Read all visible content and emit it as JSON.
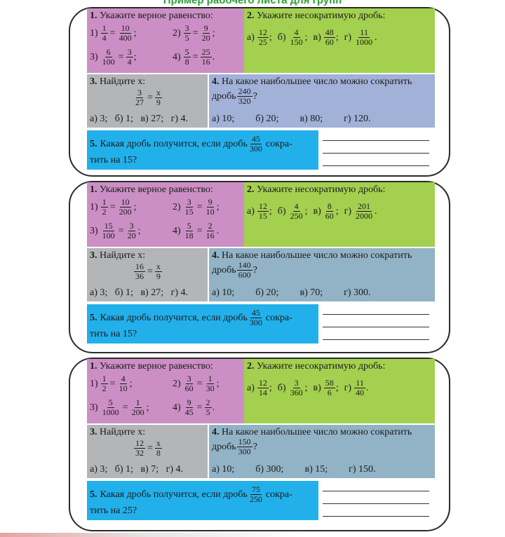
{
  "header_text": "Пример рабочего листа для групп",
  "cards": [
    {
      "q1": {
        "title_num": "1.",
        "title": "Укажите верное равенство:",
        "items": [
          {
            "label": "1)",
            "a": [
              "1",
              "4"
            ],
            "b": [
              "10",
              "400"
            ],
            "tail": ";"
          },
          {
            "label": "2)",
            "a": [
              "3",
              "5"
            ],
            "b": [
              "9",
              "20"
            ],
            "tail": ";"
          },
          {
            "label": "3)",
            "a": [
              "6",
              "100"
            ],
            "b": [
              "3",
              "4"
            ],
            "tail": ";"
          },
          {
            "label": "4)",
            "a": [
              "5",
              "8"
            ],
            "b": [
              "25",
              "16"
            ],
            "tail": "."
          }
        ]
      },
      "q2": {
        "title_num": "2.",
        "title": "Укажите несократимую дробь:",
        "items": [
          {
            "label": "а)",
            "f": [
              "12",
              "25"
            ],
            "tail": ";"
          },
          {
            "label": "б)",
            "f": [
              "4",
              "150"
            ],
            "tail": ";"
          },
          {
            "label": "в)",
            "f": [
              "48",
              "60"
            ],
            "tail": ";"
          },
          {
            "label": "г)",
            "f": [
              "11",
              "1000"
            ],
            "tail": "."
          }
        ]
      },
      "q3": {
        "title_num": "3.",
        "title": "Найдите x:",
        "a": [
          "3",
          "27"
        ],
        "b": [
          "x",
          "9"
        ],
        "answers": "а) 3;   б) 1;   в) 27;   г) 4."
      },
      "q4": {
        "title_num": "4.",
        "title": "На какое наибольшее число можно сократить",
        "prefix": "дробь",
        "f": [
          "240",
          "320"
        ],
        "suffix": "?",
        "answers": [
          "а) 10;",
          "б) 20;",
          "в) 80;",
          "г) 120."
        ]
      },
      "q5": {
        "title_num": "5.",
        "text1": "Какая дробь получится, если дробь",
        "f": [
          "45",
          "300"
        ],
        "text2": "сокра-",
        "text3": "тить на 15?"
      }
    },
    {
      "q1": {
        "title_num": "1.",
        "title": "Укажите верное равенство:",
        "items": [
          {
            "label": "1)",
            "a": [
              "1",
              "2"
            ],
            "b": [
              "10",
              "200"
            ],
            "tail": ";"
          },
          {
            "label": "2)",
            "a": [
              "3",
              "15"
            ],
            "b": [
              "9",
              "10"
            ],
            "tail": ";"
          },
          {
            "label": "3)",
            "a": [
              "15",
              "100"
            ],
            "b": [
              "3",
              "20"
            ],
            "tail": ";"
          },
          {
            "label": "4)",
            "a": [
              "5",
              "18"
            ],
            "b": [
              "2",
              "16"
            ],
            "tail": "."
          }
        ]
      },
      "q2": {
        "title_num": "2.",
        "title": "Укажите несократимую дробь:",
        "items": [
          {
            "label": "а)",
            "f": [
              "12",
              "15"
            ],
            "tail": ";"
          },
          {
            "label": "б)",
            "f": [
              "4",
              "250"
            ],
            "tail": ";"
          },
          {
            "label": "в)",
            "f": [
              "8",
              "60"
            ],
            "tail": ";"
          },
          {
            "label": "г)",
            "f": [
              "201",
              "2000"
            ],
            "tail": "."
          }
        ]
      },
      "q3": {
        "title_num": "3.",
        "title": "Найдите x:",
        "a": [
          "16",
          "36"
        ],
        "b": [
          "x",
          "9"
        ],
        "answers": "а) 3;   б) 1;   в) 27;   г) 4."
      },
      "q4": {
        "title_num": "4.",
        "title": "На какое наибольшее число можно сократить",
        "prefix": "дробь",
        "f": [
          "140",
          "600"
        ],
        "suffix": "?",
        "answers": [
          "а) 10;",
          "б) 20;",
          "в) 70;",
          "г) 300."
        ]
      },
      "q5": {
        "title_num": "5.",
        "text1": "Какая дробь получится, если дробь",
        "f": [
          "45",
          "300"
        ],
        "text2": "сокра-",
        "text3": "тить на 15?"
      }
    },
    {
      "q1": {
        "title_num": "1.",
        "title": "Укажите верное равенство:",
        "items": [
          {
            "label": "1)",
            "a": [
              "1",
              "2"
            ],
            "b": [
              "4",
              "10"
            ],
            "tail": ";"
          },
          {
            "label": "2)",
            "a": [
              "3",
              "60"
            ],
            "b": [
              "1",
              "30"
            ],
            "tail": ";"
          },
          {
            "label": "3)",
            "a": [
              "5",
              "1000"
            ],
            "b": [
              "1",
              "200"
            ],
            "tail": ";"
          },
          {
            "label": "4)",
            "a": [
              "9",
              "45"
            ],
            "b": [
              "2",
              "5"
            ],
            "tail": "."
          }
        ]
      },
      "q2": {
        "title_num": "2.",
        "title": "Укажите несократимую дробь:",
        "items": [
          {
            "label": "а)",
            "f": [
              "12",
              "14"
            ],
            "tail": ";"
          },
          {
            "label": "б)",
            "f": [
              "3",
              "360"
            ],
            "tail": ";"
          },
          {
            "label": "в)",
            "f": [
              "58",
              "6"
            ],
            "tail": ";"
          },
          {
            "label": "г)",
            "f": [
              "11",
              "40"
            ],
            "tail": "."
          }
        ]
      },
      "q3": {
        "title_num": "3.",
        "title": "Найдите x:",
        "a": [
          "12",
          "32"
        ],
        "b": [
          "x",
          "8"
        ],
        "answers": "а) 3;   б) 1;   в) 7;   г) 4."
      },
      "q4": {
        "title_num": "4.",
        "title": "На какое наибольшее число можно сократить",
        "prefix": "дробь",
        "f": [
          "150",
          "300"
        ],
        "suffix": "?",
        "answers": [
          "а) 10;",
          "б) 300;",
          "в) 15;",
          "г) 150."
        ]
      },
      "q5": {
        "title_num": "5.",
        "text1": "Какая дробь получится, если дробь",
        "f": [
          "75",
          "250"
        ],
        "text2": "сокра-",
        "text3": "тить на 25?"
      }
    }
  ],
  "colors": {
    "q1": "#cc8fc5",
    "q2": "#a4d050",
    "q3": "#b3b5b7",
    "q4_first": "#a1b1d8",
    "q4_other": "#92b3c6",
    "q5": "#22b0eb"
  }
}
